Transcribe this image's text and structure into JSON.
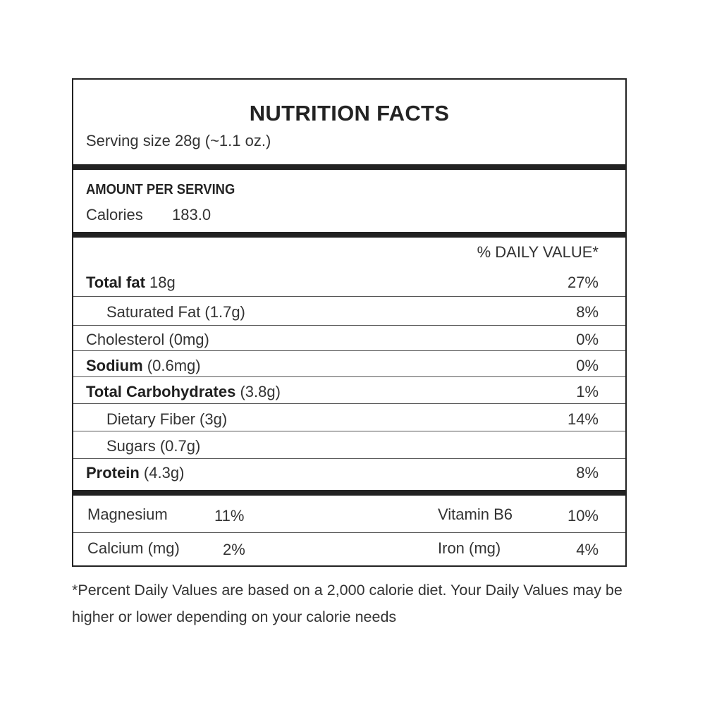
{
  "title": "NUTRITION FACTS",
  "serving_size": "Serving size 28g (~1.1 oz.)",
  "amount_per_serving": "AMOUNT PER SERVING",
  "calories": {
    "label": "Calories",
    "value": "183.0"
  },
  "daily_value_header": "% DAILY VALUE*",
  "nutrients": [
    {
      "name": "Total fat",
      "amount": "18g",
      "pct": "27%"
    },
    {
      "name": "Saturated Fat (1.7g)",
      "amount": "",
      "pct": "8%"
    },
    {
      "name": "Cholesterol (0mg)",
      "amount": "",
      "pct": "0%"
    },
    {
      "name": "Sodium",
      "amount": "(0.6mg)",
      "pct": "0%"
    },
    {
      "name": "Total Carbohydrates",
      "amount": "(3.8g)",
      "pct": "1%"
    },
    {
      "name": "Dietary Fiber (3g)",
      "amount": "",
      "pct": "14%"
    },
    {
      "name": "Sugars (0.7g)",
      "amount": "",
      "pct": ""
    },
    {
      "name": "Protein",
      "amount": "(4.3g)",
      "pct": "8%"
    }
  ],
  "vitamins": [
    {
      "name": "Magnesium",
      "pct": "11%"
    },
    {
      "name": "Vitamin B6",
      "pct": "10%"
    },
    {
      "name": "Calcium (mg)",
      "pct": "2%"
    },
    {
      "name": "Iron (mg)",
      "pct": "4%"
    }
  ],
  "footnote": "*Percent Daily Values are based on a 2,000 calorie diet. Your Daily Values may be higher or lower depending on your calorie needs"
}
